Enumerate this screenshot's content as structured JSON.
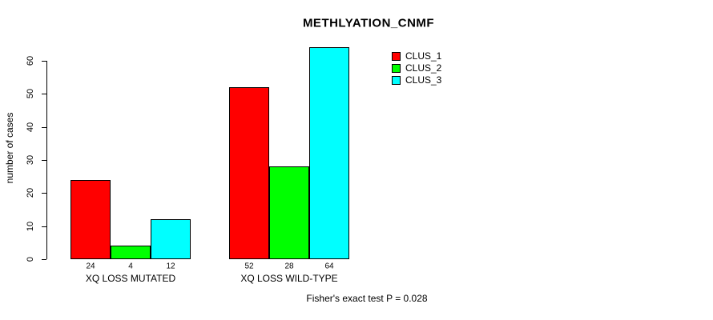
{
  "chart_data": {
    "type": "bar",
    "title": "METHLYATION_CNMF",
    "ylabel": "number of cases",
    "xlabel": "",
    "ylim": [
      0,
      60
    ],
    "yticks": [
      0,
      10,
      20,
      30,
      40,
      50,
      60
    ],
    "grid": false,
    "legend_position": "top-right",
    "categories": [
      "XQ LOSS MUTATED",
      "XQ LOSS WILD-TYPE"
    ],
    "series": [
      {
        "name": "CLUS_1",
        "color": "#ff0000",
        "values": [
          24,
          52
        ]
      },
      {
        "name": "CLUS_2",
        "color": "#00ff00",
        "values": [
          4,
          28
        ]
      },
      {
        "name": "CLUS_3",
        "color": "#00ffff",
        "values": [
          12,
          64
        ]
      }
    ],
    "groups": [
      {
        "label": "XQ LOSS MUTATED",
        "values": [
          24,
          4,
          12
        ],
        "value_labels": [
          "24",
          "4",
          "12"
        ]
      },
      {
        "label": "XQ LOSS WILD-TYPE",
        "values": [
          52,
          28,
          64
        ],
        "value_labels": [
          "52",
          "28",
          "64"
        ]
      }
    ],
    "bar_border_color": "#000000",
    "axis_color": "#000000",
    "caption": "Fisher's exact test P = 0.028"
  }
}
